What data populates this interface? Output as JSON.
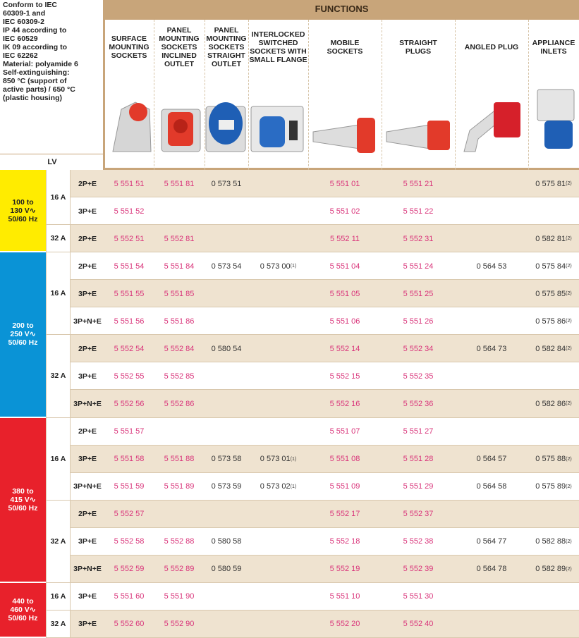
{
  "header": {
    "info": "Conform to IEC\n60309-1 and\nIEC 60309-2\nIP 44 according to\nIEC 60529\nIK 09 according to\nIEC 62262\nMaterial: polyamide 6\nSelf-extinguishing:\n850 °C (support of\nactive parts) / 650 °C\n(plastic housing)",
    "functions": "FUNCTIONS",
    "lv": "LV"
  },
  "columns": [
    "SURFACE\nMOUNTING\nSOCKETS",
    "PANEL\nMOUNTING\nSOCKETS\nINCLINED\nOUTLET",
    "PANEL\nMOUNTING\nSOCKETS\nSTRAIGHT\nOUTLET",
    "INTERLOCKED\nSWITCHED\nSOCKETS WITH\nSMALL FLANGE",
    "MOBILE\nSOCKETS",
    "STRAIGHT\nPLUGS",
    "ANGLED PLUG",
    "APPLIANCE\nINLETS"
  ],
  "groups": [
    {
      "voltage": "100 to\n130 V∿\n50/60 Hz",
      "color": "#ffec00",
      "text_color": "#222",
      "currents": [
        {
          "current": "16 A",
          "rows": [
            {
              "poles": "2P+E",
              "cells": [
                {
                  "code": "5 551 51"
                },
                {
                  "code": "5 551 81"
                },
                {
                  "code": "0 573 51"
                },
                null,
                {
                  "code": "5 551 01"
                },
                {
                  "code": "5 551 21"
                },
                null,
                {
                  "code": "0 575 81",
                  "note": "(2)"
                }
              ]
            },
            {
              "poles": "3P+E",
              "cells": [
                {
                  "code": "5 551 52"
                },
                null,
                null,
                null,
                {
                  "code": "5 551 02"
                },
                {
                  "code": "5 551 22"
                },
                null,
                null
              ]
            }
          ]
        },
        {
          "current": "32 A",
          "rows": [
            {
              "poles": "2P+E",
              "cells": [
                {
                  "code": "5 552 51"
                },
                {
                  "code": "5 552 81"
                },
                null,
                null,
                {
                  "code": "5 552 11"
                },
                {
                  "code": "5 552 31"
                },
                null,
                {
                  "code": "0 582 81",
                  "note": "(2)"
                }
              ]
            }
          ]
        }
      ]
    },
    {
      "voltage": "200 to\n250 V∿\n50/60 Hz",
      "color": "#0a93d6",
      "text_color": "#fff",
      "currents": [
        {
          "current": "16 A",
          "rows": [
            {
              "poles": "2P+E",
              "cells": [
                {
                  "code": "5 551 54"
                },
                {
                  "code": "5 551 84"
                },
                {
                  "code": "0 573 54"
                },
                {
                  "code": "0 573 00",
                  "note": "(1)"
                },
                {
                  "code": "5 551 04"
                },
                {
                  "code": "5 551 24"
                },
                {
                  "code": "0 564 53"
                },
                {
                  "code": "0 575 84",
                  "note": "(2)"
                }
              ]
            },
            {
              "poles": "3P+E",
              "cells": [
                {
                  "code": "5 551 55"
                },
                {
                  "code": "5 551 85"
                },
                null,
                null,
                {
                  "code": "5 551 05"
                },
                {
                  "code": "5 551 25"
                },
                null,
                {
                  "code": "0 575 85",
                  "note": "(2)"
                }
              ]
            },
            {
              "poles": "3P+N+E",
              "cells": [
                {
                  "code": "5 551 56"
                },
                {
                  "code": "5 551 86"
                },
                null,
                null,
                {
                  "code": "5 551 06"
                },
                {
                  "code": "5 551 26"
                },
                null,
                {
                  "code": "0 575 86",
                  "note": "(2)"
                }
              ]
            }
          ]
        },
        {
          "current": "32 A",
          "rows": [
            {
              "poles": "2P+E",
              "cells": [
                {
                  "code": "5 552 54"
                },
                {
                  "code": "5 552 84"
                },
                {
                  "code": "0 580 54"
                },
                null,
                {
                  "code": "5 552 14"
                },
                {
                  "code": "5 552 34"
                },
                {
                  "code": "0 564 73"
                },
                {
                  "code": "0 582 84",
                  "note": "(2)"
                }
              ]
            },
            {
              "poles": "3P+E",
              "cells": [
                {
                  "code": "5 552 55"
                },
                {
                  "code": "5 552 85"
                },
                null,
                null,
                {
                  "code": "5 552 15"
                },
                {
                  "code": "5 552 35"
                },
                null,
                null
              ]
            },
            {
              "poles": "3P+N+E",
              "cells": [
                {
                  "code": "5 552 56"
                },
                {
                  "code": "5 552 86"
                },
                null,
                null,
                {
                  "code": "5 552 16"
                },
                {
                  "code": "5 552 36"
                },
                null,
                {
                  "code": "0 582 86",
                  "note": "(2)"
                }
              ]
            }
          ]
        }
      ]
    },
    {
      "voltage": "380 to\n415 V∿\n50/60 Hz",
      "color": "#e8212b",
      "text_color": "#fff",
      "currents": [
        {
          "current": "16 A",
          "rows": [
            {
              "poles": "2P+E",
              "cells": [
                {
                  "code": "5 551 57"
                },
                null,
                null,
                null,
                {
                  "code": "5 551 07"
                },
                {
                  "code": "5 551 27"
                },
                null,
                null
              ]
            },
            {
              "poles": "3P+E",
              "cells": [
                {
                  "code": "5 551 58"
                },
                {
                  "code": "5 551 88"
                },
                {
                  "code": "0 573 58"
                },
                {
                  "code": "0 573 01",
                  "note": "(1)"
                },
                {
                  "code": "5 551 08"
                },
                {
                  "code": "5 551 28"
                },
                {
                  "code": "0 564 57"
                },
                {
                  "code": "0 575 88",
                  "note": "(2)"
                }
              ]
            },
            {
              "poles": "3P+N+E",
              "cells": [
                {
                  "code": "5 551 59"
                },
                {
                  "code": "5 551 89"
                },
                {
                  "code": "0 573 59"
                },
                {
                  "code": "0 573 02",
                  "note": "(1)"
                },
                {
                  "code": "5 551 09"
                },
                {
                  "code": "5 551 29"
                },
                {
                  "code": "0 564 58"
                },
                {
                  "code": "0 575 89",
                  "note": "(2)"
                }
              ]
            }
          ]
        },
        {
          "current": "32 A",
          "rows": [
            {
              "poles": "2P+E",
              "cells": [
                {
                  "code": "5 552 57"
                },
                null,
                null,
                null,
                {
                  "code": "5 552 17"
                },
                {
                  "code": "5 552 37"
                },
                null,
                null
              ]
            },
            {
              "poles": "3P+E",
              "cells": [
                {
                  "code": "5 552 58"
                },
                {
                  "code": "5 552 88"
                },
                {
                  "code": "0 580 58"
                },
                null,
                {
                  "code": "5 552 18"
                },
                {
                  "code": "5 552 38"
                },
                {
                  "code": "0 564 77"
                },
                {
                  "code": "0 582 88",
                  "note": "(2)"
                }
              ]
            },
            {
              "poles": "3P+N+E",
              "cells": [
                {
                  "code": "5 552 59"
                },
                {
                  "code": "5 552 89"
                },
                {
                  "code": "0 580 59"
                },
                null,
                {
                  "code": "5 552 19"
                },
                {
                  "code": "5 552 39"
                },
                {
                  "code": "0 564 78"
                },
                {
                  "code": "0 582 89",
                  "note": "(2)"
                }
              ]
            }
          ]
        }
      ]
    },
    {
      "voltage": "440 to\n460 V∿\n50/60 Hz",
      "color": "#e8212b",
      "text_color": "#fff",
      "currents": [
        {
          "current": "16 A",
          "rows": [
            {
              "poles": "3P+E",
              "cells": [
                {
                  "code": "5 551 60"
                },
                {
                  "code": "5 551 90"
                },
                null,
                null,
                {
                  "code": "5 551 10"
                },
                {
                  "code": "5 551 30"
                },
                null,
                null
              ]
            }
          ]
        },
        {
          "current": "32 A",
          "rows": [
            {
              "poles": "3P+E",
              "cells": [
                {
                  "code": "5 552 60"
                },
                {
                  "code": "5 552 90"
                },
                null,
                null,
                {
                  "code": "5 552 20"
                },
                {
                  "code": "5 552 40"
                },
                null,
                null
              ]
            }
          ]
        }
      ]
    }
  ]
}
